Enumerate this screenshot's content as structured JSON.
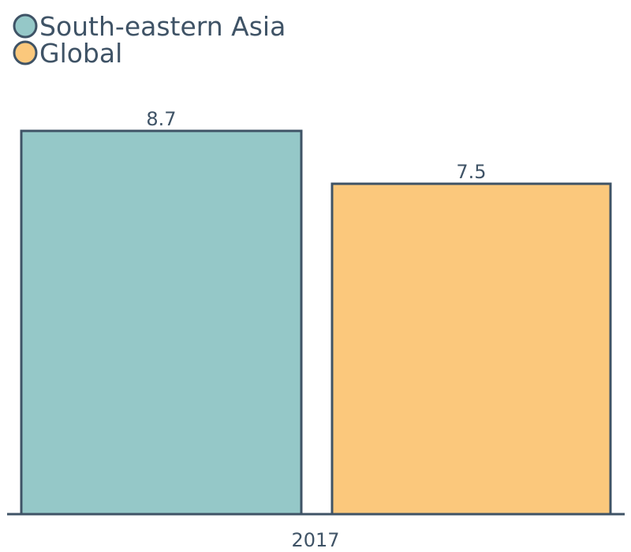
{
  "chart_data": {
    "type": "bar",
    "categories": [
      "2017"
    ],
    "series": [
      {
        "name": "South-eastern Asia",
        "values": [
          8.7
        ],
        "color": "#95c8c8"
      },
      {
        "name": "Global",
        "values": [
          7.5
        ],
        "color": "#fbc87c"
      }
    ],
    "data_labels": [
      "8.7",
      "7.5"
    ],
    "title": "",
    "xlabel": "",
    "ylabel": "",
    "ylim": [
      0,
      8.7
    ],
    "grid": false,
    "legend_position": "top-left",
    "stroke_color": "#3f5366"
  }
}
